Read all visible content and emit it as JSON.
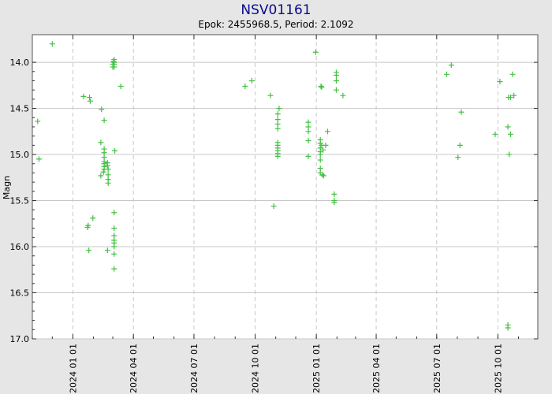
{
  "chart_data": {
    "type": "scatter",
    "title": "NSV01161",
    "subtitle": "Epok: 2455968.5, Period: 2.1092",
    "xlabel": "",
    "ylabel": "Magn",
    "y_inverted": true,
    "ylim": [
      17.0,
      13.7
    ],
    "xlim": [
      "2023-11-01",
      "2025-11-30"
    ],
    "grid": true,
    "y_ticks": [
      "14.0",
      "14.5",
      "15.0",
      "15.5",
      "16.0",
      "16.5",
      "17.0"
    ],
    "x_ticks": [
      "2024 01 01",
      "2024 04 01",
      "2024 07 01",
      "2024 10 01",
      "2025 01 01",
      "2025 04 01",
      "2025 07 01",
      "2025 10 01"
    ],
    "colors": {
      "marker": "#44c044",
      "title": "#0a0a8c",
      "grid": "#c8c8c8",
      "plot_bg": "#ffffff",
      "page_bg": "#e6e6e6"
    },
    "series": [
      {
        "marker": "plus",
        "points": [
          [
            "2023-11-09",
            14.64
          ],
          [
            "2023-11-11",
            15.05
          ],
          [
            "2023-12-01",
            13.8
          ],
          [
            "2024-01-17",
            14.37
          ],
          [
            "2024-01-26",
            14.38
          ],
          [
            "2024-01-27",
            14.42
          ],
          [
            "2024-01-31",
            15.69
          ],
          [
            "2024-01-24",
            15.77
          ],
          [
            "2024-01-23",
            15.79
          ],
          [
            "2024-01-25",
            16.04
          ],
          [
            "2024-02-12",
            14.87
          ],
          [
            "2024-02-13",
            14.51
          ],
          [
            "2024-02-17",
            14.63
          ],
          [
            "2024-02-12",
            15.23
          ],
          [
            "2024-02-16",
            15.19
          ],
          [
            "2024-02-17",
            14.94
          ],
          [
            "2024-02-17",
            14.98
          ],
          [
            "2024-02-17",
            15.03
          ],
          [
            "2024-02-17",
            15.08
          ],
          [
            "2024-02-17",
            15.1
          ],
          [
            "2024-02-17",
            15.13
          ],
          [
            "2024-02-17",
            15.16
          ],
          [
            "2024-02-22",
            16.04
          ],
          [
            "2024-02-22",
            15.09
          ],
          [
            "2024-02-22",
            15.12
          ],
          [
            "2024-02-23",
            15.16
          ],
          [
            "2024-02-23",
            15.22
          ],
          [
            "2024-02-23",
            15.27
          ],
          [
            "2024-02-23",
            15.31
          ],
          [
            "2024-03-01",
            14.02
          ],
          [
            "2024-03-01",
            14.05
          ],
          [
            "2024-03-02",
            13.99
          ],
          [
            "2024-03-03",
            14.02
          ],
          [
            "2024-03-03",
            14.05
          ],
          [
            "2024-03-03",
            13.97
          ],
          [
            "2024-03-03",
            14.0
          ],
          [
            "2024-03-04",
            14.96
          ],
          [
            "2024-03-03",
            15.63
          ],
          [
            "2024-03-03",
            15.8
          ],
          [
            "2024-03-03",
            15.88
          ],
          [
            "2024-03-03",
            15.93
          ],
          [
            "2024-03-03",
            15.96
          ],
          [
            "2024-03-03",
            16.0
          ],
          [
            "2024-03-03",
            16.08
          ],
          [
            "2024-03-03",
            16.24
          ],
          [
            "2024-03-13",
            14.26
          ],
          [
            "2024-09-16",
            14.26
          ],
          [
            "2024-09-26",
            14.2
          ],
          [
            "2024-10-24",
            14.36
          ],
          [
            "2024-10-29",
            15.56
          ],
          [
            "2024-11-06",
            14.5
          ],
          [
            "2024-11-04",
            14.56
          ],
          [
            "2024-11-04",
            14.62
          ],
          [
            "2024-11-04",
            14.67
          ],
          [
            "2024-11-04",
            14.72
          ],
          [
            "2024-11-04",
            14.87
          ],
          [
            "2024-11-04",
            14.9
          ],
          [
            "2024-11-04",
            14.93
          ],
          [
            "2024-11-04",
            14.96
          ],
          [
            "2024-11-04",
            14.99
          ],
          [
            "2024-11-04",
            15.02
          ],
          [
            "2024-12-20",
            14.65
          ],
          [
            "2024-12-20",
            14.7
          ],
          [
            "2024-12-20",
            14.75
          ],
          [
            "2024-12-20",
            14.85
          ],
          [
            "2024-12-20",
            15.02
          ],
          [
            "2024-12-31",
            13.89
          ],
          [
            "2025-01-08",
            14.26
          ],
          [
            "2025-01-09",
            14.27
          ],
          [
            "2025-01-07",
            14.84
          ],
          [
            "2025-01-07",
            14.88
          ],
          [
            "2025-01-07",
            14.93
          ],
          [
            "2025-01-07",
            14.97
          ],
          [
            "2025-01-07",
            15.0
          ],
          [
            "2025-01-07",
            15.06
          ],
          [
            "2025-01-07",
            15.15
          ],
          [
            "2025-01-07",
            15.2
          ],
          [
            "2025-01-09",
            14.9
          ],
          [
            "2025-01-11",
            14.95
          ],
          [
            "2025-01-10",
            15.22
          ],
          [
            "2025-01-12",
            15.23
          ],
          [
            "2025-01-15",
            14.9
          ],
          [
            "2025-01-18",
            14.75
          ],
          [
            "2025-01-28",
            15.43
          ],
          [
            "2025-01-28",
            15.5
          ],
          [
            "2025-01-28",
            15.52
          ],
          [
            "2025-01-31",
            14.11
          ],
          [
            "2025-01-31",
            14.14
          ],
          [
            "2025-01-31",
            14.2
          ],
          [
            "2025-01-31",
            14.3
          ],
          [
            "2025-02-10",
            14.36
          ],
          [
            "2025-07-16",
            14.13
          ],
          [
            "2025-07-23",
            14.03
          ],
          [
            "2025-08-02",
            15.03
          ],
          [
            "2025-08-05",
            14.9
          ],
          [
            "2025-08-07",
            14.54
          ],
          [
            "2025-09-27",
            14.78
          ],
          [
            "2025-10-04",
            14.21
          ],
          [
            "2025-10-16",
            14.7
          ],
          [
            "2025-10-17",
            14.38
          ],
          [
            "2025-10-20",
            14.38
          ],
          [
            "2025-10-18",
            15.0
          ],
          [
            "2025-10-20",
            14.78
          ],
          [
            "2025-10-23",
            14.13
          ],
          [
            "2025-10-25",
            14.36
          ],
          [
            "2025-10-16",
            16.85
          ],
          [
            "2025-10-16",
            16.88
          ]
        ]
      }
    ]
  }
}
